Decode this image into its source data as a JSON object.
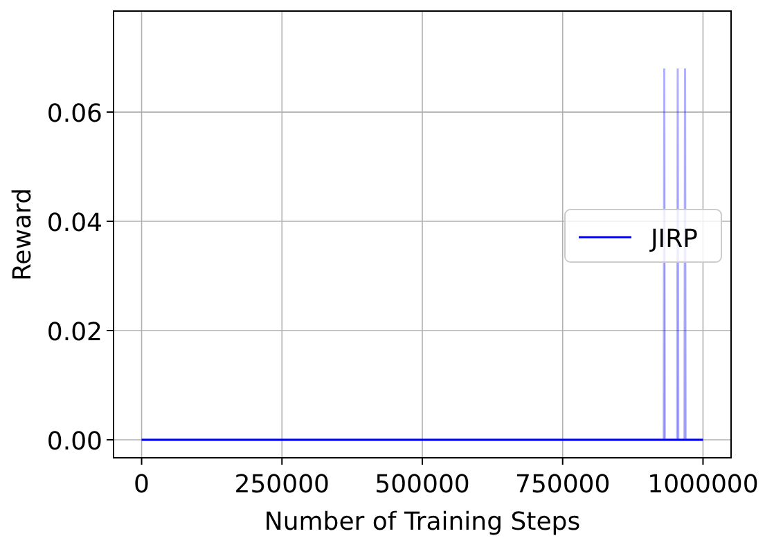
{
  "chart_data": {
    "type": "line",
    "xlabel": "Number of Training Steps",
    "ylabel": "Reward",
    "x": [
      0,
      930000,
      931000,
      932000,
      954000,
      955000,
      956000,
      967000,
      968000,
      969000,
      1000000
    ],
    "series": [
      {
        "name": "JIRP",
        "color": "#0000ff",
        "values": [
          0,
          0,
          0,
          0,
          0,
          0,
          0,
          0,
          0,
          0,
          0
        ],
        "lower": [
          0,
          0,
          0,
          0,
          0,
          0,
          0,
          0,
          0,
          0,
          0
        ],
        "upper": [
          0,
          0,
          0.068,
          0,
          0,
          0.068,
          0,
          0,
          0.068,
          0,
          0
        ]
      }
    ],
    "xlim": [
      -50000,
      1050000
    ],
    "xticks": [
      0,
      250000,
      500000,
      750000,
      1000000
    ],
    "ylim": [
      -0.0033,
      0.0785
    ],
    "yticks": [
      {
        "value": 0,
        "label": "0.00"
      },
      {
        "value": 0.02,
        "label": "0.02"
      },
      {
        "value": 0.04,
        "label": "0.04"
      },
      {
        "value": 0.06,
        "label": "0.06"
      }
    ],
    "grid": true,
    "legend": "right",
    "marker": "none",
    "line_style": "solid"
  }
}
